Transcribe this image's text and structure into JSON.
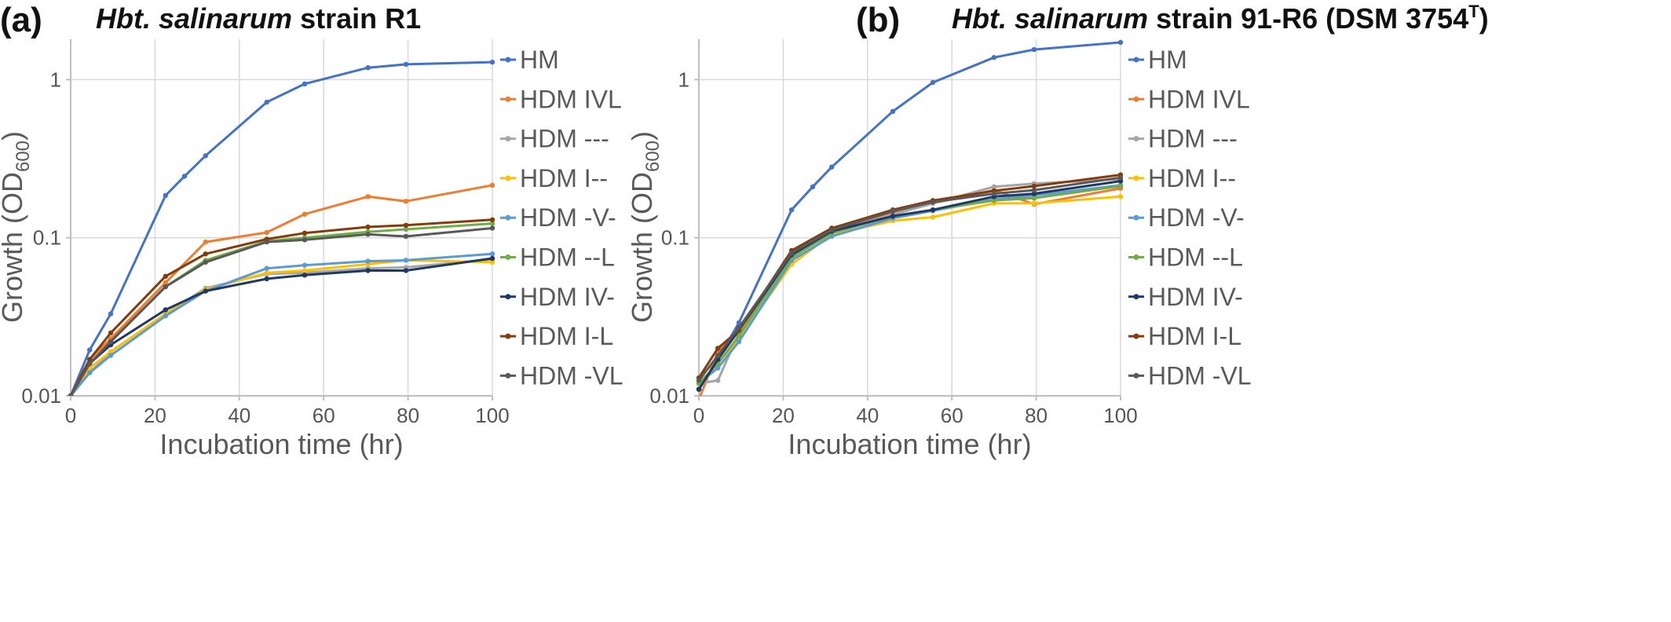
{
  "figure": {
    "panels": [
      {
        "letter": "(a)",
        "title_italic": "Hbt. salinarum",
        "title_rest": " strain R1",
        "title_sup": ""
      },
      {
        "letter": "(b)",
        "title_italic": "Hbt. salinarum",
        "title_rest": " strain 91-R6 (DSM 3754",
        "title_sup": "T",
        "title_close": ")"
      }
    ]
  },
  "chart_data": [
    {
      "type": "line",
      "title": "Hbt. salinarum strain R1",
      "xlabel": "Incubation time (hr)",
      "ylabel": "Growth (OD600)",
      "ylabel_main": "Growth (OD",
      "ylabel_sub": "600",
      "ylabel_close": ")",
      "xlim": [
        0,
        100
      ],
      "ylim": [
        0.01,
        1.8
      ],
      "yscale": "log",
      "grid": true,
      "legend": "right",
      "x_ticks": [
        0,
        20,
        40,
        60,
        80,
        100
      ],
      "y_ticks": [
        0.01,
        0.1,
        1
      ],
      "y_tick_labels": [
        "0.01",
        "0.1",
        "1"
      ],
      "series": [
        {
          "name": "HM",
          "color": "#4472c4",
          "x": [
            0,
            4.5,
            9.5,
            22.5,
            27,
            32,
            46.5,
            55.5,
            70.5,
            79.5,
            100
          ],
          "y": [
            0.01,
            0.0195,
            0.033,
            0.185,
            0.245,
            0.33,
            0.72,
            0.94,
            1.19,
            1.25,
            1.29
          ]
        },
        {
          "name": "HDM IVL",
          "color": "#ed7d31",
          "x": [
            0,
            4.5,
            9.5,
            22.5,
            32,
            46.5,
            55.5,
            70.5,
            79.5,
            100
          ],
          "y": [
            0.01,
            0.017,
            0.023,
            0.052,
            0.094,
            0.108,
            0.141,
            0.182,
            0.17,
            0.215
          ]
        },
        {
          "name": "HDM ---",
          "color": "#a5a5a5",
          "x": [
            0,
            4.5,
            9.5,
            22.5,
            32,
            46.5,
            55.5,
            70.5,
            79.5,
            100
          ],
          "y": [
            0.01,
            0.014,
            0.019,
            0.033,
            0.048,
            0.059,
            0.06,
            0.064,
            0.065,
            0.073
          ]
        },
        {
          "name": "HDM I--",
          "color": "#ffc000",
          "x": [
            0,
            4.5,
            9.5,
            22.5,
            32,
            46.5,
            55.5,
            70.5,
            79.5,
            100
          ],
          "y": [
            0.01,
            0.015,
            0.019,
            0.033,
            0.047,
            0.06,
            0.062,
            0.068,
            0.072,
            0.07
          ]
        },
        {
          "name": "HDM -V-",
          "color": "#5b9bd5",
          "x": [
            0,
            4.5,
            9.5,
            22.5,
            32,
            46.5,
            55.5,
            70.5,
            79.5,
            100
          ],
          "y": [
            0.01,
            0.014,
            0.018,
            0.032,
            0.046,
            0.064,
            0.067,
            0.071,
            0.072,
            0.079
          ]
        },
        {
          "name": "HDM --L",
          "color": "#70ad47",
          "x": [
            0,
            4.5,
            9.5,
            22.5,
            32,
            46.5,
            55.5,
            70.5,
            79.5,
            100
          ],
          "y": [
            0.01,
            0.016,
            0.022,
            0.049,
            0.072,
            0.095,
            0.1,
            0.109,
            0.113,
            0.123
          ]
        },
        {
          "name": "HDM IV-",
          "color": "#203864",
          "x": [
            0,
            4.5,
            9.5,
            22.5,
            32,
            46.5,
            55.5,
            70.5,
            79.5,
            100
          ],
          "y": [
            0.01,
            0.016,
            0.021,
            0.035,
            0.046,
            0.055,
            0.058,
            0.062,
            0.062,
            0.074
          ]
        },
        {
          "name": "HDM I-L",
          "color": "#843c0c",
          "x": [
            0,
            4.5,
            9.5,
            22.5,
            32,
            46.5,
            55.5,
            70.5,
            79.5,
            100
          ],
          "y": [
            0.01,
            0.017,
            0.025,
            0.057,
            0.079,
            0.098,
            0.107,
            0.117,
            0.12,
            0.13
          ]
        },
        {
          "name": "HDM -VL",
          "color": "#595959",
          "x": [
            0,
            4.5,
            9.5,
            22.5,
            32,
            46.5,
            55.5,
            70.5,
            79.5,
            100
          ],
          "y": [
            0.01,
            0.016,
            0.022,
            0.049,
            0.07,
            0.094,
            0.097,
            0.105,
            0.102,
            0.115
          ]
        }
      ]
    },
    {
      "type": "line",
      "title": "Hbt. salinarum strain 91-R6 (DSM 3754T)",
      "xlabel": "Incubation time (hr)",
      "ylabel": "Growth (OD600)",
      "ylabel_main": "Growth (OD",
      "ylabel_sub": "600",
      "ylabel_close": ")",
      "xlim": [
        0,
        100
      ],
      "ylim": [
        0.01,
        1.8
      ],
      "yscale": "log",
      "grid": true,
      "legend": "right",
      "x_ticks": [
        0,
        20,
        40,
        60,
        80,
        100
      ],
      "y_ticks": [
        0.01,
        0.1,
        1
      ],
      "y_tick_labels": [
        "0.01",
        "0.1",
        "1"
      ],
      "series": [
        {
          "name": "HM",
          "color": "#4472c4",
          "x": [
            0,
            4.5,
            9.5,
            22,
            27,
            31.5,
            46,
            55.5,
            70,
            79.5,
            100
          ],
          "y": [
            0.011,
            0.017,
            0.029,
            0.15,
            0.21,
            0.28,
            0.63,
            0.96,
            1.38,
            1.55,
            1.72
          ]
        },
        {
          "name": "HDM IVL",
          "color": "#ed7d31",
          "x": [
            0,
            4.5,
            9.5,
            22,
            31.5,
            46,
            55.5,
            70,
            79.5,
            100
          ],
          "y": [
            0.0095,
            0.019,
            0.026,
            0.08,
            0.112,
            0.145,
            0.165,
            0.2,
            0.163,
            0.205
          ]
        },
        {
          "name": "HDM ---",
          "color": "#a5a5a5",
          "x": [
            0,
            4.5,
            9.5,
            22,
            31.5,
            46,
            55.5,
            70,
            79.5,
            100
          ],
          "y": [
            0.012,
            0.0125,
            0.025,
            0.075,
            0.108,
            0.14,
            0.165,
            0.21,
            0.22,
            0.235
          ]
        },
        {
          "name": "HDM I--",
          "color": "#ffc000",
          "x": [
            0,
            4.5,
            9.5,
            22,
            31.5,
            46,
            55.5,
            70,
            79.5,
            100
          ],
          "y": [
            0.012,
            0.016,
            0.023,
            0.068,
            0.105,
            0.128,
            0.135,
            0.165,
            0.165,
            0.182
          ]
        },
        {
          "name": "HDM -V-",
          "color": "#5b9bd5",
          "x": [
            0,
            4.5,
            9.5,
            22,
            31.5,
            46,
            55.5,
            70,
            79.5,
            100
          ],
          "y": [
            0.012,
            0.015,
            0.022,
            0.072,
            0.102,
            0.133,
            0.148,
            0.175,
            0.185,
            0.215
          ]
        },
        {
          "name": "HDM --L",
          "color": "#70ad47",
          "x": [
            0,
            4.5,
            9.5,
            22,
            31.5,
            46,
            55.5,
            70,
            79.5,
            100
          ],
          "y": [
            0.012,
            0.016,
            0.024,
            0.075,
            0.107,
            0.137,
            0.15,
            0.172,
            0.178,
            0.212
          ]
        },
        {
          "name": "HDM IV-",
          "color": "#203864",
          "x": [
            0,
            4.5,
            9.5,
            22,
            31.5,
            46,
            55.5,
            70,
            79.5,
            100
          ],
          "y": [
            0.011,
            0.017,
            0.026,
            0.078,
            0.11,
            0.137,
            0.15,
            0.182,
            0.19,
            0.228
          ]
        },
        {
          "name": "HDM I-L",
          "color": "#843c0c",
          "x": [
            0,
            4.5,
            9.5,
            22,
            31.5,
            46,
            55.5,
            70,
            79.5,
            100
          ],
          "y": [
            0.013,
            0.02,
            0.026,
            0.083,
            0.115,
            0.15,
            0.172,
            0.198,
            0.212,
            0.25
          ]
        },
        {
          "name": "HDM -VL",
          "color": "#595959",
          "x": [
            0,
            4.5,
            9.5,
            22,
            31.5,
            46,
            55.5,
            70,
            79.5,
            100
          ],
          "y": [
            0.0125,
            0.018,
            0.027,
            0.08,
            0.112,
            0.147,
            0.168,
            0.19,
            0.2,
            0.24
          ]
        }
      ]
    }
  ]
}
